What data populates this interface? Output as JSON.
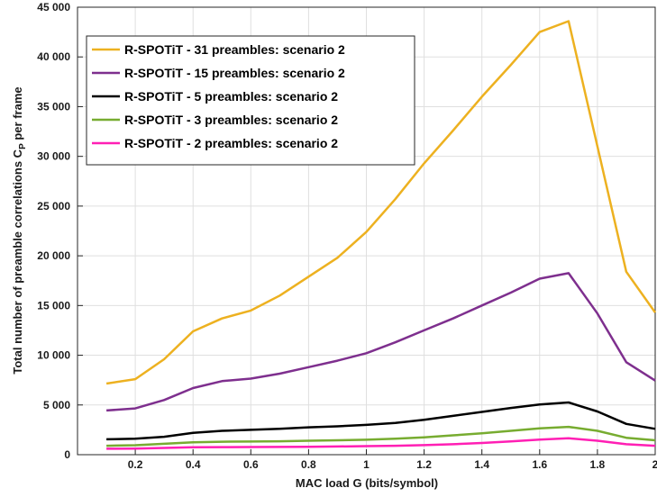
{
  "chart_data": {
    "type": "line",
    "xlabel": "MAC load G (bits/symbol)",
    "ylabel_main": "Total number of preamble correlations C",
    "ylabel_sub": "P",
    "ylabel_tail": " per frame",
    "xlim": [
      0,
      2
    ],
    "ylim": [
      0,
      45000
    ],
    "xticks": [
      0.2,
      0.4,
      0.6,
      0.8,
      1,
      1.2,
      1.4,
      1.6,
      1.8,
      2
    ],
    "xtick_labels": [
      "0.2",
      "0.4",
      "0.6",
      "0.8",
      "1",
      "1.2",
      "1.4",
      "1.6",
      "1.8",
      "2"
    ],
    "yticks": [
      0,
      5000,
      10000,
      15000,
      20000,
      25000,
      30000,
      35000,
      40000,
      45000
    ],
    "ytick_labels": [
      "0",
      "5 000",
      "10 000",
      "15 000",
      "20 000",
      "25 000",
      "30 000",
      "35 000",
      "40 000",
      "45 000"
    ],
    "grid": true,
    "legend_position": "top-left",
    "x": [
      0.1,
      0.2,
      0.3,
      0.4,
      0.5,
      0.6,
      0.7,
      0.8,
      0.9,
      1.0,
      1.1,
      1.2,
      1.3,
      1.4,
      1.5,
      1.6,
      1.7,
      1.8,
      1.9,
      2.0
    ],
    "series": [
      {
        "name": "R-SPOTiT - 31 preambles: scenario 2",
        "color": "#EDB120",
        "values": [
          7150,
          7600,
          9600,
          12400,
          13700,
          14500,
          16000,
          17900,
          19800,
          22400,
          25700,
          29300,
          32600,
          36000,
          39200,
          42500,
          43600,
          31000,
          18400,
          14300
        ]
      },
      {
        "name": "R-SPOTiT - 15 preambles: scenario 2",
        "color": "#7E2F8E",
        "values": [
          4450,
          4650,
          5500,
          6700,
          7400,
          7650,
          8150,
          8800,
          9450,
          10200,
          11300,
          12500,
          13700,
          15000,
          16300,
          17700,
          18250,
          14200,
          9300,
          7450
        ]
      },
      {
        "name": "R-SPOTiT - 5 preambles: scenario 2",
        "color": "#000000",
        "values": [
          1550,
          1600,
          1800,
          2200,
          2400,
          2500,
          2600,
          2750,
          2850,
          3000,
          3200,
          3500,
          3900,
          4300,
          4700,
          5050,
          5250,
          4350,
          3100,
          2600
        ]
      },
      {
        "name": "R-SPOTiT - 3 preambles: scenario 2",
        "color": "#77AC30",
        "values": [
          900,
          950,
          1100,
          1250,
          1300,
          1320,
          1350,
          1400,
          1450,
          1500,
          1600,
          1750,
          1950,
          2150,
          2400,
          2650,
          2800,
          2400,
          1700,
          1450
        ]
      },
      {
        "name": "R-SPOTiT - 2 preambles: scenario 2",
        "color": "#FF1FB4",
        "values": [
          600,
          620,
          680,
          740,
          760,
          770,
          780,
          800,
          820,
          860,
          900,
          960,
          1050,
          1180,
          1330,
          1520,
          1650,
          1400,
          1050,
          900
        ]
      }
    ]
  }
}
